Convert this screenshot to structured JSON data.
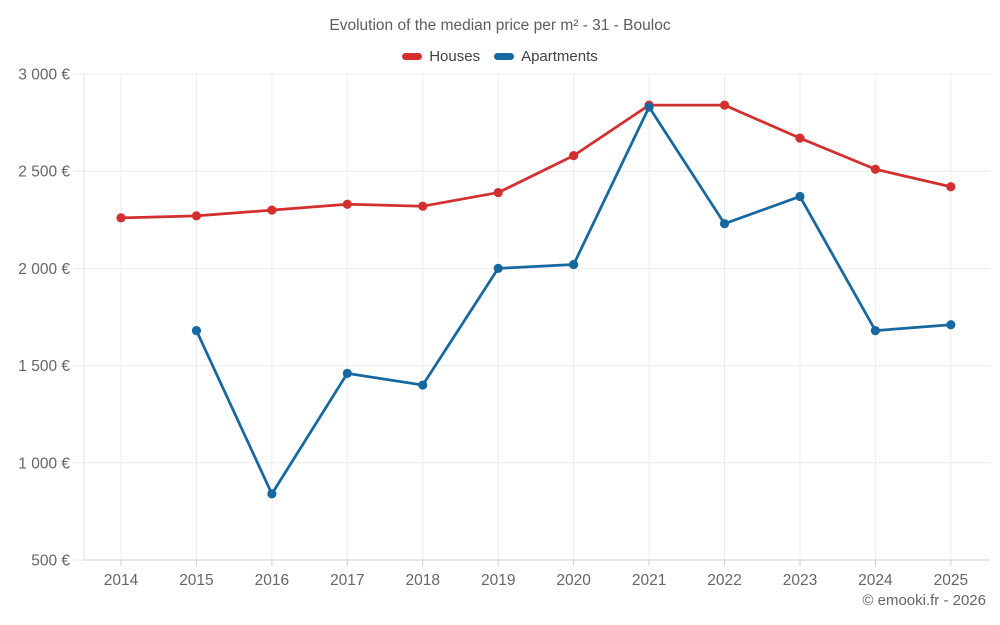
{
  "title": "Evolution of the median price per m² - 31 - Bouloc",
  "footer": "© emooki.fr - 2026",
  "colors": {
    "houses": "#d32f2f",
    "apartments": "#1668a0",
    "grid": "#ececec",
    "axis": "#cfcfcf",
    "axis_light": "#e3e3e3",
    "tick_text": "#666666",
    "title_text": "#5a5e61",
    "legend_text": "#424242",
    "background": "#ffffff"
  },
  "chart_data": {
    "type": "line",
    "title": "Evolution of the median price per m² - 31 - Bouloc",
    "x": [
      2014,
      2015,
      2016,
      2017,
      2018,
      2019,
      2020,
      2021,
      2022,
      2023,
      2024,
      2025
    ],
    "series": [
      {
        "name": "Houses",
        "color": "#d32f2f",
        "values": [
          2260,
          2270,
          2300,
          2330,
          2320,
          2390,
          2580,
          2840,
          2840,
          2670,
          2510,
          2420
        ]
      },
      {
        "name": "Apartments",
        "color": "#1668a0",
        "values": [
          null,
          1680,
          840,
          1460,
          1400,
          2000,
          2020,
          2830,
          2230,
          2370,
          1680,
          1710
        ]
      }
    ],
    "ylim": [
      500,
      3000
    ],
    "yticks": [
      {
        "value": 3000,
        "label": "3 000 €"
      },
      {
        "value": 2500,
        "label": "2 500 €"
      },
      {
        "value": 2000,
        "label": "2 000 €"
      },
      {
        "value": 1500,
        "label": "1 500 €"
      },
      {
        "value": 1000,
        "label": "1 000 €"
      },
      {
        "value": 500,
        "label": "500 €"
      }
    ],
    "xlabel": "",
    "ylabel": "",
    "grid": true,
    "legend_position": "top",
    "currency": "€"
  }
}
